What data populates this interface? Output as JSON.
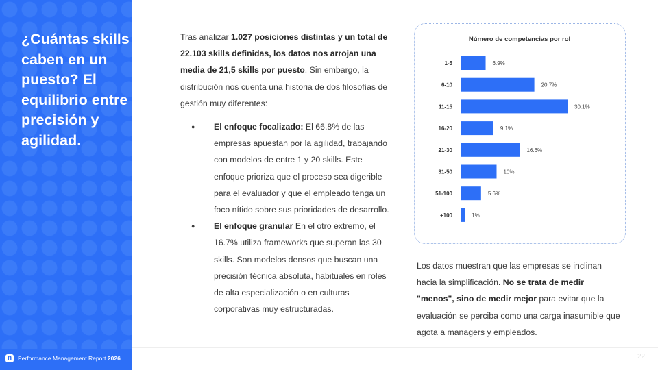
{
  "sidebar": {
    "title": "¿Cuántas skills caben en un puesto? El equilibrio entre precisión y agilidad."
  },
  "footer": {
    "logo_glyph": "n",
    "report_name": "Performance Management Report",
    "year": "2026",
    "page_number": "22"
  },
  "intro": {
    "before": "Tras analizar ",
    "bold": "1.027 posiciones distintas y un total de 22.103 skills definidas, los datos nos arrojan una media de 21,5 skills por puesto",
    "after": ". Sin embargo, la distribución nos cuenta una historia de dos filosofías de gestión muy diferentes:"
  },
  "bullets": [
    {
      "title": "El enfoque focalizado:",
      "text": " El 66.8% de las empresas apuestan por la agilidad, trabajando con modelos de entre 1 y 20 skills. Este enfoque prioriza que el proceso sea digerible para el evaluador y que el empleado tenga un foco nítido sobre sus prioridades de desarrollo."
    },
    {
      "title": "El enfoque granular",
      "text": " En el otro extremo, el 16.7% utiliza frameworks que superan las 30 skills. Son modelos densos que buscan una precisión técnica absoluta, habituales en roles de alta especialización o en culturas corporativas muy estructuradas."
    }
  ],
  "conclusion": {
    "before": "Los datos muestran que las empresas se inclinan hacia la simplificación. ",
    "bold": "No se trata de medir \"menos\", sino de medir mejor",
    "after": " para evitar que la evaluación se perciba como una carga inasumible que agota a managers y empleados."
  },
  "colors": {
    "brand_blue": "#2d6ff7",
    "bar_blue": "#2d6ff7"
  },
  "chart_data": {
    "type": "bar",
    "orientation": "horizontal",
    "title": "Número de competencias por rol",
    "categories": [
      "1-5",
      "6-10",
      "11-15",
      "16-20",
      "21-30",
      "31-50",
      "51-100",
      "+100"
    ],
    "values": [
      6.9,
      20.7,
      30.1,
      9.1,
      16.6,
      10,
      5.6,
      1
    ],
    "value_labels": [
      "6.9%",
      "20.7%",
      "30.1%",
      "9.1%",
      "16.6%",
      "10%",
      "5.6%",
      "1%"
    ],
    "xlim": [
      0,
      30.1
    ],
    "grid": false,
    "legend": "none"
  }
}
